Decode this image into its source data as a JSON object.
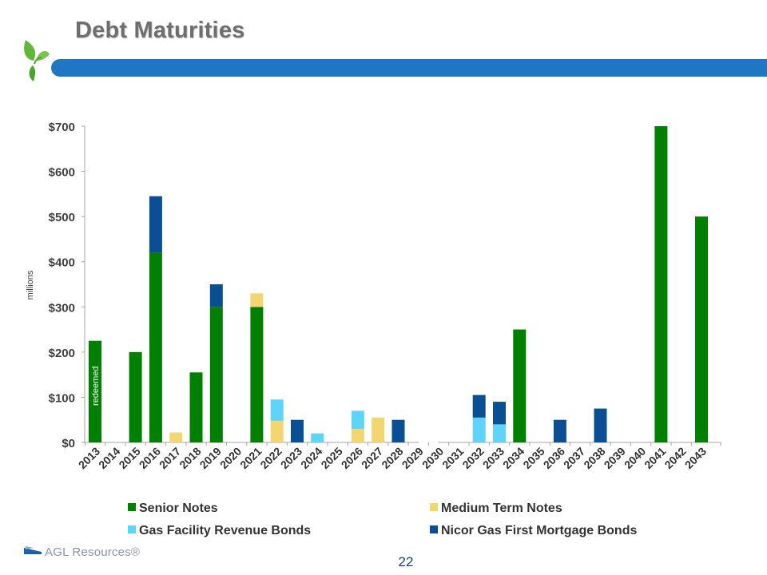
{
  "slide": {
    "title": "Debt Maturities",
    "page_number": "22",
    "brand_name": "AGL Resources®"
  },
  "colors": {
    "senior_notes": "#008000",
    "medium_term_notes": "#f3d670",
    "gas_facility_revenue_bonds": "#5ed4fa",
    "nicor_first_mortgage_bonds": "#0a4f94",
    "title_bar": "#1f77c4",
    "title_text": "#6e6e6e"
  },
  "chart_data": {
    "type": "bar",
    "stacked": true,
    "categories": [
      "2013",
      "2014",
      "2015",
      "2016",
      "2017",
      "2018",
      "2019",
      "2020",
      "2021",
      "2022",
      "2023",
      "2024",
      "2025",
      "2026",
      "2027",
      "2028",
      "2029",
      "2030",
      "2031",
      "2032",
      "2033",
      "2034",
      "2035",
      "2036",
      "2037",
      "2038",
      "2039",
      "2040",
      "2041",
      "2042",
      "2043"
    ],
    "series": [
      {
        "name": "Senior Notes",
        "color": "#008000",
        "values": [
          225,
          0,
          200,
          420,
          0,
          155,
          300,
          0,
          300,
          0,
          0,
          0,
          0,
          0,
          0,
          0,
          0,
          0,
          0,
          0,
          0,
          250,
          0,
          0,
          0,
          0,
          0,
          0,
          700,
          0,
          500
        ]
      },
      {
        "name": "Medium Term Notes",
        "color": "#f3d670",
        "values": [
          0,
          0,
          0,
          0,
          22,
          0,
          0,
          0,
          30,
          48,
          0,
          0,
          0,
          30,
          55,
          0,
          0,
          0,
          0,
          0,
          0,
          0,
          0,
          0,
          0,
          0,
          0,
          0,
          0,
          0,
          0
        ]
      },
      {
        "name": "Gas Facility Revenue Bonds",
        "color": "#5ed4fa",
        "values": [
          0,
          0,
          0,
          0,
          0,
          0,
          0,
          0,
          0,
          47,
          0,
          20,
          0,
          40,
          0,
          0,
          0,
          0,
          0,
          55,
          40,
          0,
          0,
          0,
          0,
          0,
          0,
          0,
          0,
          0,
          0
        ]
      },
      {
        "name": "Nicor Gas First Mortgage Bonds",
        "color": "#0a4f94",
        "values": [
          0,
          0,
          0,
          125,
          0,
          0,
          50,
          0,
          0,
          0,
          50,
          0,
          0,
          0,
          0,
          50,
          0,
          0,
          0,
          50,
          50,
          0,
          0,
          50,
          0,
          75,
          0,
          0,
          0,
          0,
          0
        ]
      }
    ],
    "ylim": [
      0,
      700
    ],
    "yticks": [
      0,
      100,
      200,
      300,
      400,
      500,
      600,
      700
    ],
    "ytick_labels": [
      "$0",
      "$100",
      "$200",
      "$300",
      "$400",
      "$500",
      "$600",
      "$700"
    ],
    "ylabel": "millions",
    "xlabel": "",
    "annotations": [
      {
        "category": "2013",
        "text": "redeemed"
      }
    ],
    "axis_break_after": "2029",
    "grid": false,
    "legend_position": "bottom"
  }
}
